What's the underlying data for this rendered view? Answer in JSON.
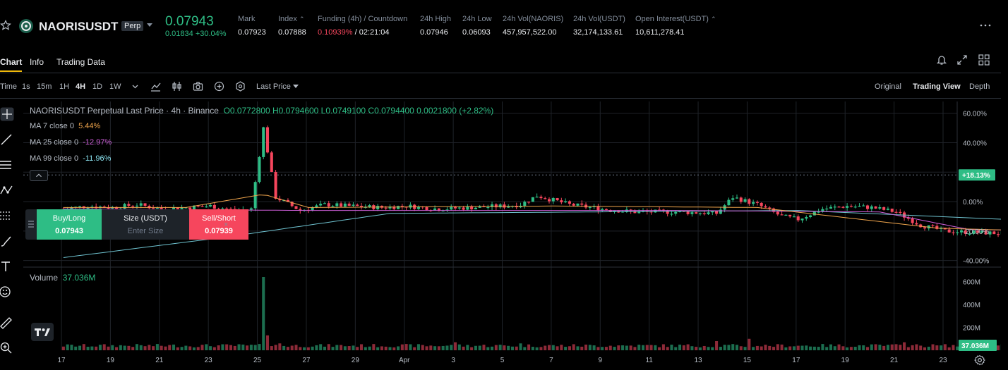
{
  "ticker": {
    "symbol": "NAORISUSDT",
    "badge": "Perp",
    "last_price": "0.07943",
    "change": "0.01834 +30.04%",
    "stats": [
      {
        "label": "Mark",
        "value": "0.07923"
      },
      {
        "label": "Index",
        "value": "0.07888"
      },
      {
        "label": "Funding (4h) / Countdown",
        "value_funding": "0.10939%",
        "value_countdown": " / 02:21:04"
      },
      {
        "label": "24h High",
        "value": "0.07946"
      },
      {
        "label": "24h Low",
        "value": "0.06093"
      },
      {
        "label": "24h Vol(NAORIS)",
        "value": "457,957,522.00"
      },
      {
        "label": "24h Vol(USDT)",
        "value": "32,174,133.61"
      },
      {
        "label": "Open Interest(USDT)",
        "value": "10,611,278.41"
      }
    ]
  },
  "tabs": [
    "Chart",
    "Info",
    "Trading Data"
  ],
  "toolbar": {
    "intervals": [
      "Time",
      "1s",
      "15m",
      "1H",
      "4H",
      "1D",
      "1W"
    ],
    "active_interval": "4H",
    "price_type": "Last Price",
    "views": [
      "Original",
      "Trading View",
      "Depth"
    ],
    "active_view": "Trading View"
  },
  "legend": {
    "title": "NAORISUSDT Perpetual Last Price · 4h · Binance",
    "ohlc": "O0.0772800  H0.0794600  L0.0749100  C0.0794400  0.0021800 (+2.82%)",
    "ma7_label": "MA 7 close 0",
    "ma7_value": "5.44%",
    "ma25_label": "MA 25 close 0",
    "ma25_value": "-12.97%",
    "ma99_label": "MA 99 close 0",
    "ma99_value": "-11.96%"
  },
  "trade": {
    "buy_label": "Buy/Long",
    "buy_price": "0.07943",
    "size_label": "Size (USDT)",
    "size_placeholder": "Enter Size",
    "sell_label": "Sell/Short",
    "sell_price": "0.07939",
    "close": "×"
  },
  "volume": {
    "label": "Volume",
    "value": "37.036M"
  },
  "colors": {
    "up": "#2ebd85",
    "down": "#f6465d",
    "ma7": "#f0a54c",
    "ma25": "#d05fdb",
    "ma99": "#6fc3d0",
    "grid": "#1f2329"
  },
  "chart_data": {
    "type": "candlestick",
    "price_axis_unit": "percent",
    "price_ticks": [
      "60.00%",
      "40.00%",
      "20.00%",
      "0.00%",
      "-20.00%",
      "-40.00%"
    ],
    "price_tick_values": [
      60,
      40,
      20,
      0,
      -20,
      -40
    ],
    "price_range": [
      -44,
      68
    ],
    "current_label": "+18.13%",
    "current_value": 18.13,
    "volume_ticks": [
      "600M",
      "400M",
      "200M"
    ],
    "volume_tick_values": [
      600,
      400,
      200
    ],
    "volume_range": [
      0,
      720
    ],
    "current_volume_label": "37.036M",
    "date_labels": [
      "17",
      "19",
      "21",
      "23",
      "25",
      "27",
      "29",
      "Apr",
      "3",
      "5",
      "7",
      "9",
      "11",
      "13",
      "15",
      "17",
      "19",
      "21",
      "23"
    ],
    "candles_per_day": 6,
    "start_offset_days": -1.5,
    "anchors": [
      [
        0,
        -5
      ],
      [
        6,
        -3
      ],
      [
        12,
        -4
      ],
      [
        18,
        -2
      ],
      [
        24,
        -5
      ],
      [
        30,
        -4
      ],
      [
        36,
        -3
      ],
      [
        42,
        -6
      ],
      [
        46,
        -5
      ],
      [
        49,
        50
      ],
      [
        52,
        3
      ],
      [
        58,
        -6
      ],
      [
        64,
        -2
      ],
      [
        70,
        -3
      ],
      [
        78,
        -4
      ],
      [
        84,
        -3
      ],
      [
        92,
        -5
      ],
      [
        100,
        -4
      ],
      [
        108,
        -3
      ],
      [
        112,
        -2
      ],
      [
        116,
        4
      ],
      [
        124,
        -2
      ],
      [
        132,
        -5
      ],
      [
        140,
        -7
      ],
      [
        150,
        -7
      ],
      [
        160,
        -8
      ],
      [
        164,
        3
      ],
      [
        170,
        -2
      ],
      [
        176,
        -10
      ],
      [
        180,
        -12
      ],
      [
        186,
        -5
      ],
      [
        192,
        -3
      ],
      [
        198,
        -4
      ],
      [
        204,
        -7
      ],
      [
        210,
        -16
      ],
      [
        216,
        -20
      ],
      [
        224,
        -21
      ],
      [
        234,
        -22
      ],
      [
        244,
        -21
      ],
      [
        252,
        -22
      ],
      [
        255,
        -5
      ],
      [
        258,
        -2
      ],
      [
        262,
        5
      ],
      [
        266,
        14
      ],
      [
        268,
        18.13
      ]
    ],
    "ma7": [
      [
        0,
        -4
      ],
      [
        30,
        -4
      ],
      [
        49,
        5
      ],
      [
        60,
        -4
      ],
      [
        120,
        -3
      ],
      [
        170,
        -4
      ],
      [
        214,
        -18
      ],
      [
        252,
        -21
      ],
      [
        268,
        8
      ]
    ],
    "ma25": [
      [
        0,
        -5
      ],
      [
        60,
        -6
      ],
      [
        150,
        -6
      ],
      [
        200,
        -7
      ],
      [
        222,
        -19
      ],
      [
        252,
        -20
      ],
      [
        268,
        -12
      ]
    ],
    "ma99": [
      [
        0,
        -38
      ],
      [
        40,
        -24
      ],
      [
        80,
        -8
      ],
      [
        180,
        -6
      ],
      [
        230,
        -12
      ],
      [
        268,
        -12
      ]
    ]
  }
}
